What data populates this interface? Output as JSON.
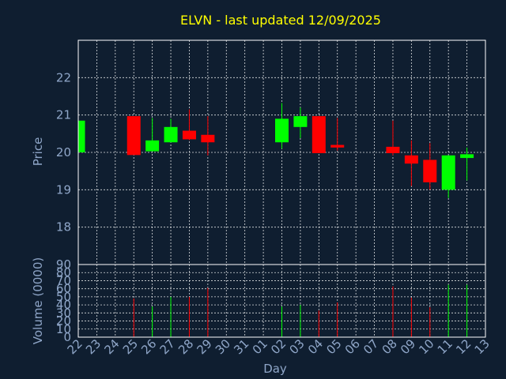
{
  "title": "ELVN - last updated 12/09/2025",
  "colors": {
    "up": "#00ff00",
    "down": "#ff0000",
    "background": "#0f1e30",
    "text": "#8fa6c8",
    "title": "#ffff00"
  },
  "chart_data": [
    {
      "type": "candlestick",
      "ylabel": "Price",
      "ylim": [
        17,
        23
      ],
      "yticks": [
        "18",
        "19",
        "20",
        "21",
        "22"
      ],
      "grid": true,
      "categories": [
        "22",
        "23",
        "24",
        "25",
        "26",
        "27",
        "28",
        "29",
        "30",
        "31",
        "01",
        "02",
        "03",
        "04",
        "05",
        "06",
        "07",
        "08",
        "09",
        "10",
        "11",
        "12",
        "13"
      ],
      "candles": [
        {
          "day": "22",
          "open": 20.0,
          "close": 20.85,
          "high": 20.85,
          "low": 20.0
        },
        {
          "day": "25",
          "open": 20.97,
          "close": 19.93,
          "high": 20.97,
          "low": 19.93
        },
        {
          "day": "26",
          "open": 20.03,
          "close": 20.32,
          "high": 20.92,
          "low": 20.03
        },
        {
          "day": "27",
          "open": 20.27,
          "close": 20.68,
          "high": 20.9,
          "low": 20.27
        },
        {
          "day": "28",
          "open": 20.58,
          "close": 20.35,
          "high": 21.15,
          "low": 20.33
        },
        {
          "day": "29",
          "open": 20.47,
          "close": 20.27,
          "high": 20.97,
          "low": 19.92
        },
        {
          "day": "02",
          "open": 20.27,
          "close": 20.9,
          "high": 21.32,
          "low": 20.1
        },
        {
          "day": "03",
          "open": 20.68,
          "close": 20.97,
          "high": 21.2,
          "low": 20.38
        },
        {
          "day": "04",
          "open": 20.97,
          "close": 19.98,
          "high": 20.97,
          "low": 19.98
        },
        {
          "day": "05",
          "open": 20.2,
          "close": 20.13,
          "high": 20.92,
          "low": 20.05
        },
        {
          "day": "08",
          "open": 20.15,
          "close": 19.98,
          "high": 20.85,
          "low": 19.92
        },
        {
          "day": "09",
          "open": 19.92,
          "close": 19.7,
          "high": 20.32,
          "low": 19.1
        },
        {
          "day": "10",
          "open": 19.8,
          "close": 19.2,
          "high": 20.25,
          "low": 19.0
        },
        {
          "day": "11",
          "open": 19.0,
          "close": 19.92,
          "high": 19.92,
          "low": 18.78
        },
        {
          "day": "12",
          "open": 19.85,
          "close": 19.95,
          "high": 20.13,
          "low": 19.25
        }
      ]
    },
    {
      "type": "bar",
      "ylabel": "Volume (0000)",
      "ylim": [
        0,
        90
      ],
      "yticks": [
        "0",
        "10",
        "20",
        "30",
        "40",
        "50",
        "60",
        "70",
        "80",
        "90"
      ],
      "xlabel": "Day",
      "grid": true,
      "categories": [
        "22",
        "23",
        "24",
        "25",
        "26",
        "27",
        "28",
        "29",
        "30",
        "31",
        "01",
        "02",
        "03",
        "04",
        "05",
        "06",
        "07",
        "08",
        "09",
        "10",
        "11",
        "12",
        "13"
      ],
      "bars": [
        {
          "day": "25",
          "value": 48,
          "direction": "down"
        },
        {
          "day": "26",
          "value": 38,
          "direction": "up"
        },
        {
          "day": "27",
          "value": 50,
          "direction": "up"
        },
        {
          "day": "28",
          "value": 50,
          "direction": "down"
        },
        {
          "day": "29",
          "value": 61,
          "direction": "down"
        },
        {
          "day": "02",
          "value": 38,
          "direction": "up"
        },
        {
          "day": "03",
          "value": 40,
          "direction": "up"
        },
        {
          "day": "04",
          "value": 33,
          "direction": "down"
        },
        {
          "day": "05",
          "value": 43,
          "direction": "down"
        },
        {
          "day": "08",
          "value": 63,
          "direction": "down"
        },
        {
          "day": "09",
          "value": 49,
          "direction": "down"
        },
        {
          "day": "10",
          "value": 37,
          "direction": "down"
        },
        {
          "day": "11",
          "value": 65,
          "direction": "up"
        },
        {
          "day": "12",
          "value": 65,
          "direction": "up"
        }
      ]
    }
  ]
}
